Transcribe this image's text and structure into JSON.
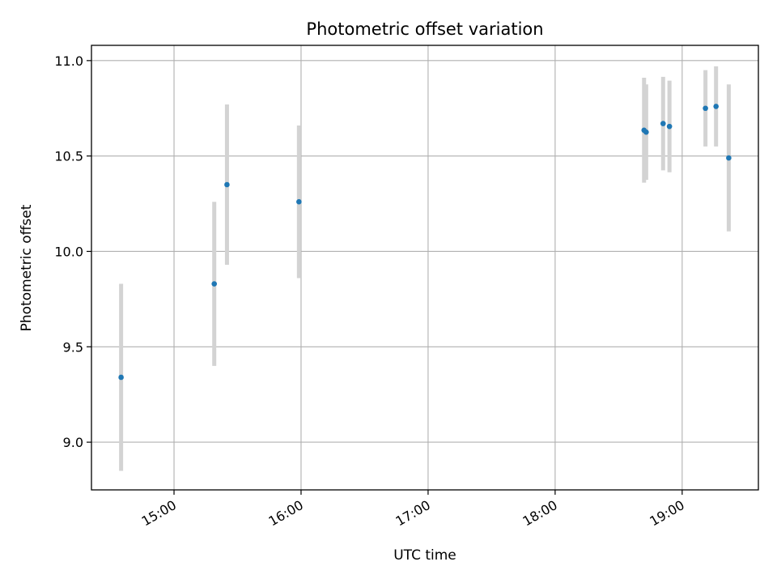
{
  "chart_data": {
    "type": "scatter",
    "title": "Photometric offset variation",
    "xlabel": "UTC time",
    "ylabel": "Photometric offset",
    "x_ticks": [
      "15:00",
      "16:00",
      "17:00",
      "18:00",
      "19:00"
    ],
    "y_ticks": [
      "9.0",
      "9.5",
      "10.0",
      "10.5",
      "11.0"
    ],
    "xlim": [
      "14:21",
      "19:36"
    ],
    "ylim": [
      8.75,
      11.08
    ],
    "grid": true,
    "colors": {
      "points": "#1f77b4",
      "errorbars": "#d3d3d3",
      "grid": "#b0b0b0",
      "axes": "#000000"
    },
    "series": [
      {
        "points": [
          {
            "x": "14:35",
            "y": 9.34,
            "yerr": 0.49
          },
          {
            "x": "15:19",
            "y": 9.83,
            "yerr": 0.43
          },
          {
            "x": "15:25",
            "y": 10.35,
            "yerr": 0.42
          },
          {
            "x": "15:59",
            "y": 10.26,
            "yerr": 0.4
          },
          {
            "x": "18:42",
            "y": 10.635,
            "yerr": 0.275
          },
          {
            "x": "18:43",
            "y": 10.625,
            "yerr": 0.25
          },
          {
            "x": "18:51",
            "y": 10.67,
            "yerr": 0.245
          },
          {
            "x": "18:54",
            "y": 10.655,
            "yerr": 0.24
          },
          {
            "x": "19:11",
            "y": 10.75,
            "yerr": 0.2
          },
          {
            "x": "19:16",
            "y": 10.76,
            "yerr": 0.21
          },
          {
            "x": "19:22",
            "y": 10.49,
            "yerr": 0.385
          }
        ]
      }
    ]
  }
}
